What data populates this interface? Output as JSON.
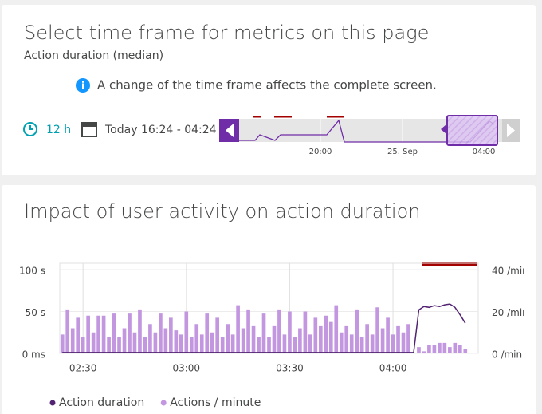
{
  "header": {
    "title": "Select time frame for metrics on this page",
    "subtitle": "Action duration (median)",
    "info": "A change of the time frame affects the complete screen."
  },
  "timeframe": {
    "duration": "12 h",
    "range": "Today 16:24 - 04:24",
    "ticks": [
      "20:00",
      "25. Sep",
      "04:00"
    ]
  },
  "chart_data": {
    "type": "bar",
    "title": "Impact of user activity on action duration",
    "categories": [
      null,
      null,
      null,
      null,
      "02:30",
      null,
      null,
      null,
      null,
      null,
      null,
      null,
      null,
      null,
      null,
      null,
      null,
      null,
      null,
      null,
      null,
      null,
      null,
      null,
      "03:00",
      null,
      null,
      null,
      null,
      null,
      null,
      null,
      null,
      null,
      null,
      null,
      null,
      null,
      null,
      null,
      null,
      null,
      null,
      null,
      "03:30",
      null,
      null,
      null,
      null,
      null,
      null,
      null,
      null,
      null,
      null,
      null,
      null,
      null,
      null,
      null,
      null,
      null,
      null,
      null,
      "04:00",
      null,
      null,
      null,
      null,
      null,
      null,
      null,
      null,
      null,
      null,
      null,
      null,
      null,
      null,
      null,
      null
    ],
    "series": [
      {
        "name": "Action duration",
        "type": "line",
        "color": "#522273",
        "axis": "y",
        "values": [
          1,
          1,
          1,
          1,
          1,
          1,
          1,
          1,
          1,
          1,
          1,
          1,
          1,
          1,
          1,
          1,
          1,
          1,
          1,
          1,
          1,
          1,
          1,
          1,
          1,
          1,
          1,
          1,
          1,
          1,
          1,
          1,
          1,
          1,
          1,
          1,
          1,
          1,
          1,
          1,
          1,
          1,
          1,
          1,
          1,
          1,
          1,
          1,
          1,
          1,
          1,
          1,
          1,
          1,
          1,
          1,
          1,
          1,
          1,
          1,
          1,
          1,
          1,
          1,
          1,
          1,
          1,
          1,
          1,
          52,
          56,
          55,
          57,
          56,
          58,
          59,
          55,
          46,
          36,
          null,
          null
        ]
      },
      {
        "name": "Actions / minute",
        "type": "bar",
        "color": "#c396e0",
        "axis": "y2",
        "values": [
          9,
          21,
          12,
          17,
          8,
          18,
          10,
          18,
          18,
          8,
          19,
          8,
          12,
          19,
          10,
          21,
          8,
          14,
          10,
          19,
          12,
          17,
          11,
          9,
          20,
          8,
          14,
          9,
          19,
          10,
          17,
          8,
          14,
          9,
          23,
          12,
          21,
          13,
          8,
          19,
          8,
          13,
          21,
          9,
          20,
          8,
          12,
          20,
          9,
          17,
          13,
          18,
          15,
          23,
          10,
          13,
          9,
          21,
          8,
          14,
          9,
          22,
          12,
          17,
          9,
          13,
          10,
          14,
          null,
          3,
          1,
          4,
          4,
          5,
          5,
          3,
          5,
          4,
          2,
          null,
          null
        ]
      }
    ],
    "ylim": [
      0,
      100
    ],
    "yticks": [
      {
        "value": 0,
        "label": "0 ms"
      },
      {
        "value": 50,
        "label": "50 s"
      },
      {
        "value": 100,
        "label": "100 s"
      }
    ],
    "y2lim": [
      0,
      40
    ],
    "y2ticks": [
      {
        "value": 0,
        "label": "0 /min"
      },
      {
        "value": 20,
        "label": "20 /min"
      },
      {
        "value": 40,
        "label": "40 /min"
      }
    ],
    "grid": true,
    "legend": "bottom-left"
  }
}
